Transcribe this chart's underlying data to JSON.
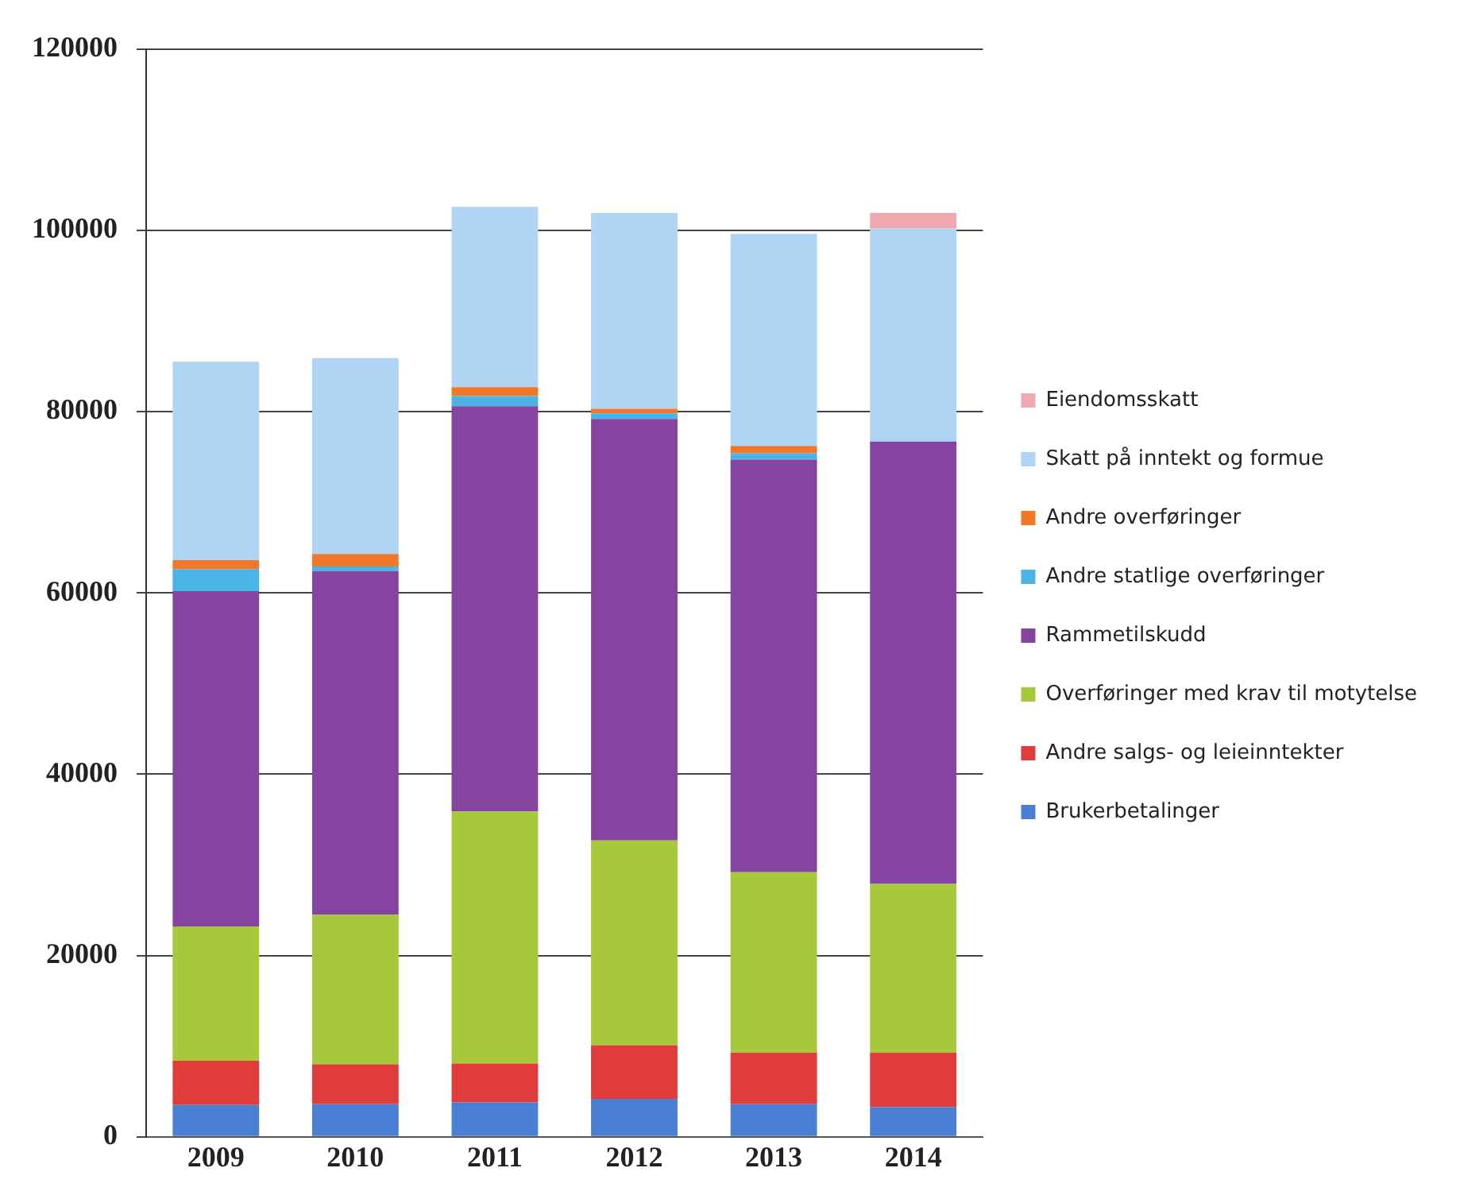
{
  "chart_data": {
    "type": "bar",
    "stacked": true,
    "categories": [
      "2009",
      "2010",
      "2011",
      "2012",
      "2013",
      "2014"
    ],
    "series": [
      {
        "name": "Brukerbetalinger",
        "color": "#4a7fd4",
        "values": [
          3500,
          3600,
          3800,
          4200,
          3600,
          3300
        ]
      },
      {
        "name": "Andre salgs- og leieinntekter",
        "color": "#e03c3c",
        "values": [
          4900,
          4400,
          4300,
          5900,
          5700,
          6000
        ]
      },
      {
        "name": "Overføringer med krav til motytelse",
        "color": "#a8c83c",
        "values": [
          14800,
          16500,
          27800,
          22600,
          19900,
          18600
        ]
      },
      {
        "name": "Rammetilskudd",
        "color": "#8444a0",
        "values": [
          37000,
          37900,
          44700,
          46500,
          45500,
          48800
        ]
      },
      {
        "name": "Andre statlige overføringer",
        "color": "#4ab4e6",
        "values": [
          2400,
          500,
          1100,
          600,
          700,
          0
        ]
      },
      {
        "name": "Andre overføringer",
        "color": "#f07828",
        "values": [
          1000,
          1400,
          1000,
          500,
          800,
          0
        ]
      },
      {
        "name": "Skatt på inntekt og formue",
        "color": "#b0d4f4",
        "values": [
          21900,
          21600,
          19900,
          21600,
          23400,
          23500
        ]
      },
      {
        "name": "Eiendomsskatt",
        "color": "#f0a8b0",
        "values": [
          0,
          0,
          0,
          0,
          0,
          1700
        ]
      }
    ],
    "ylim": [
      0,
      120000
    ],
    "yticks": [
      0,
      20000,
      40000,
      60000,
      80000,
      100000,
      120000
    ],
    "grid": "y",
    "legend": "right"
  }
}
